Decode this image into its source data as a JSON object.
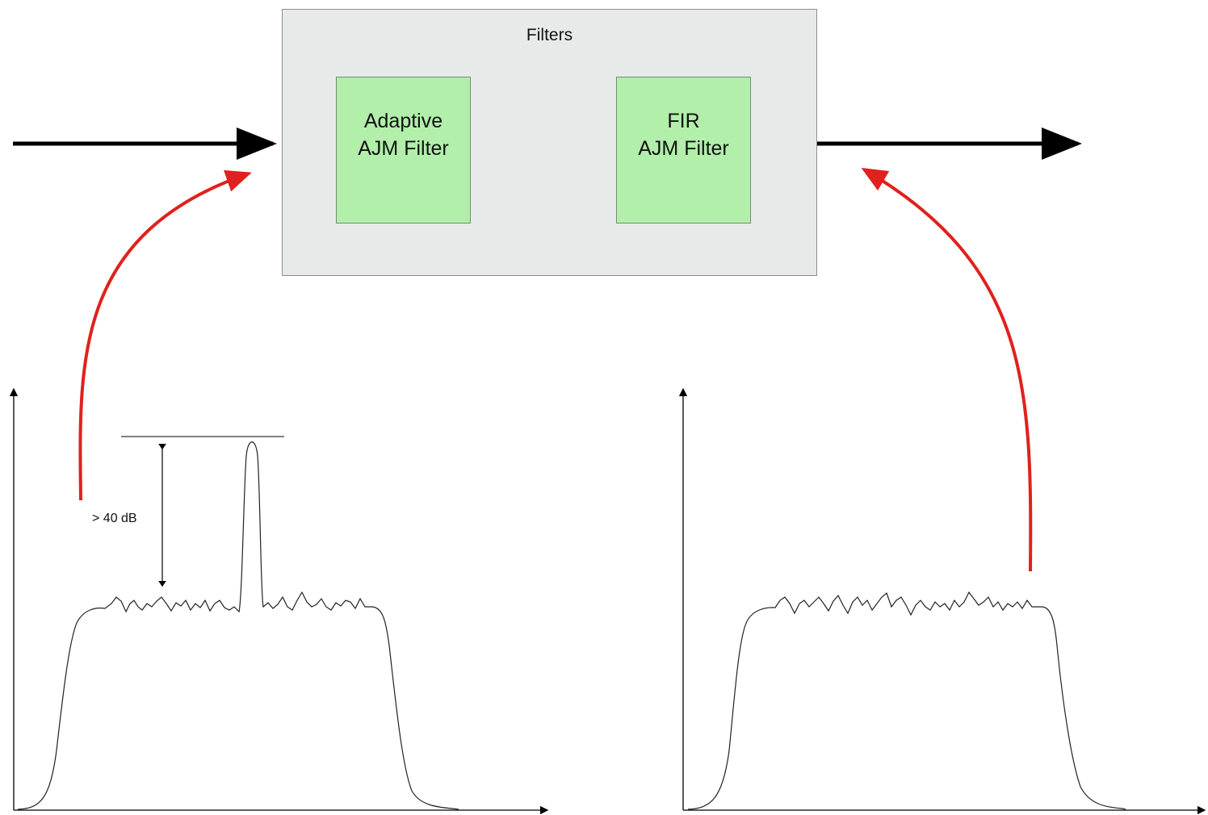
{
  "filters_group": {
    "title": "Filters",
    "blocks": [
      {
        "id": "adaptive",
        "line1": "Adaptive",
        "line2": "AJM Filter"
      },
      {
        "id": "fir",
        "line1": "FIR",
        "line2": "AJM Filter"
      }
    ]
  },
  "annotations": {
    "attenuation": "> 40 dB"
  },
  "colors": {
    "signal_arrow": "#000000",
    "feedback_arrow": "#e0211d",
    "box_fill": "#e6eae8",
    "filter_fill": "#b1efaa"
  },
  "spectra": [
    {
      "id": "input-spectrum",
      "has_jammer_spike": true
    },
    {
      "id": "output-spectrum",
      "has_jammer_spike": false
    }
  ]
}
